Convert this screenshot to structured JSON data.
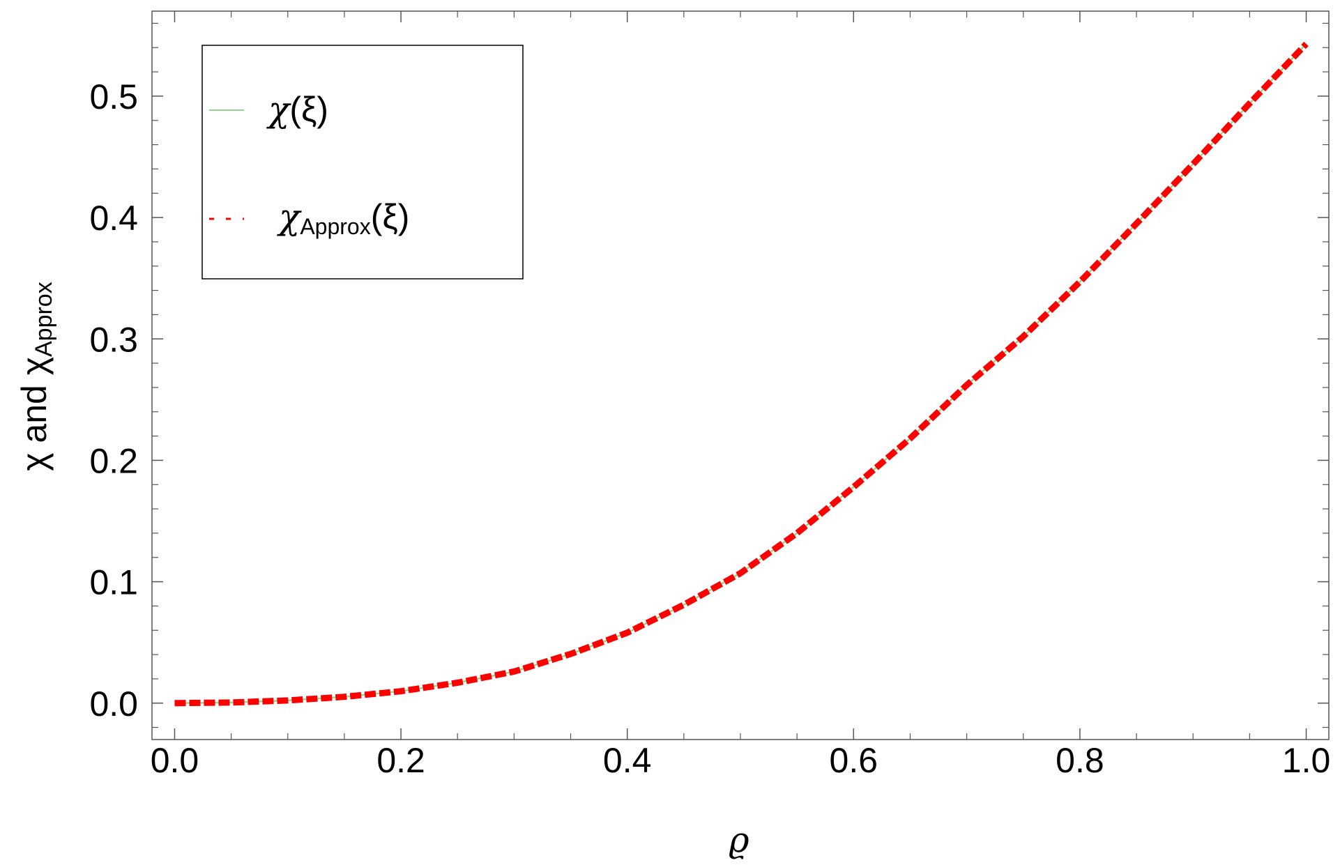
{
  "chart_data": {
    "type": "line",
    "xlabel": "ϱ",
    "ylabel": {
      "main": "χ and χ",
      "subscript": "Approx"
    },
    "xlim": [
      -0.02,
      1.02
    ],
    "ylim": [
      -0.03,
      0.57
    ],
    "x_ticks": [
      0.0,
      0.2,
      0.4,
      0.6,
      0.8,
      1.0
    ],
    "x_tick_labels": [
      "0.0",
      "0.2",
      "0.4",
      "0.6",
      "0.8",
      "1.0"
    ],
    "y_ticks": [
      0.0,
      0.1,
      0.2,
      0.3,
      0.4,
      0.5
    ],
    "y_tick_labels": [
      "0.0",
      "0.1",
      "0.2",
      "0.3",
      "0.4",
      "0.5"
    ],
    "grid": false,
    "legend_position": "top-left",
    "x": [
      0.0,
      0.05,
      0.1,
      0.15,
      0.2,
      0.25,
      0.3,
      0.35,
      0.4,
      0.45,
      0.5,
      0.55,
      0.6,
      0.65,
      0.7,
      0.75,
      0.8,
      0.85,
      0.9,
      0.95,
      1.0
    ],
    "series": [
      {
        "name": "χ(ξ)",
        "legend": {
          "symbol": "χ",
          "subscript": "",
          "argument": "(ξ)"
        },
        "color": "#90d890",
        "style": "solid",
        "values": [
          0.0,
          0.0005,
          0.0022,
          0.0052,
          0.0098,
          0.0168,
          0.026,
          0.0405,
          0.058,
          0.081,
          0.107,
          0.14,
          0.178,
          0.218,
          0.262,
          0.302,
          0.347,
          0.395,
          0.444,
          0.494,
          0.543
        ]
      },
      {
        "name": "χApprox(ξ)",
        "legend": {
          "symbol": "χ",
          "subscript": "Approx",
          "argument": "(ξ)"
        },
        "color": "#ff0000",
        "style": "dashed",
        "values": [
          0.0,
          0.0005,
          0.0022,
          0.0052,
          0.0098,
          0.0168,
          0.026,
          0.0405,
          0.058,
          0.081,
          0.107,
          0.14,
          0.178,
          0.218,
          0.262,
          0.302,
          0.347,
          0.395,
          0.444,
          0.494,
          0.543
        ]
      }
    ]
  }
}
